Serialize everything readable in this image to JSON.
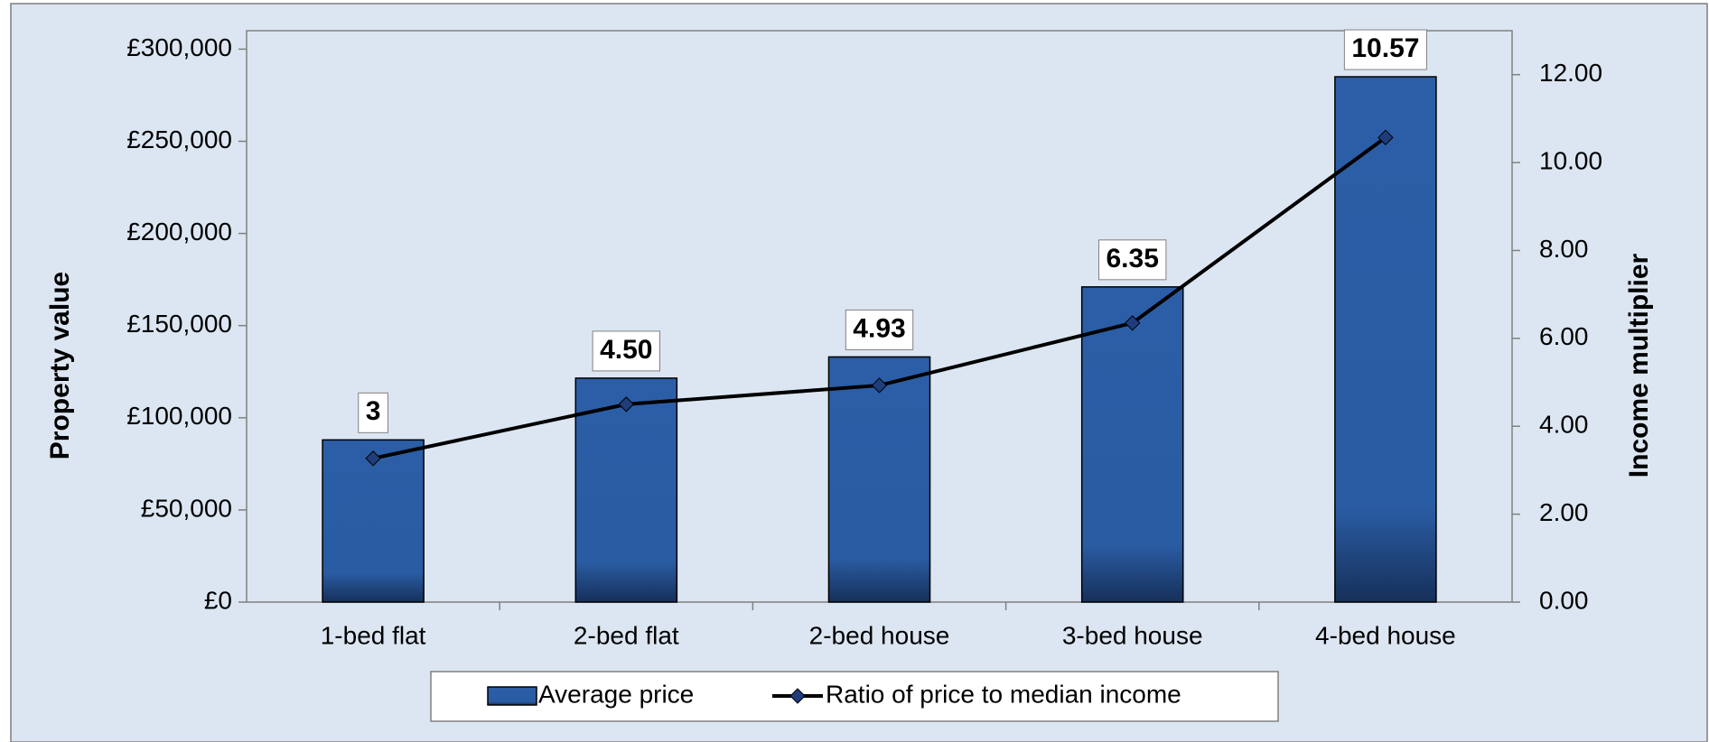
{
  "chart_data": {
    "type": "bar",
    "categories": [
      "1-bed flat",
      "2-bed flat",
      "2-bed house",
      "3-bed house",
      "4-bed house"
    ],
    "series": [
      {
        "name": "Average price",
        "type": "bar",
        "color": "#2a5aa0",
        "values": [
          88000,
          121500,
          133000,
          171000,
          285000
        ]
      },
      {
        "name": "Ratio of price to median income",
        "type": "line",
        "axis": "y2",
        "color": "#000000",
        "marker_color": "#1f3d7a",
        "values": [
          3.27,
          4.5,
          4.93,
          6.35,
          10.57
        ],
        "value_labels": [
          "3",
          "4.50",
          "4.93",
          "6.35",
          "10.57"
        ]
      }
    ],
    "ylabel": "Property value",
    "y2label": "Income multiplier",
    "ylim": [
      0,
      310000
    ],
    "yticks": [
      {
        "value": 0,
        "label": "£0"
      },
      {
        "value": 50000,
        "label": "£50,000"
      },
      {
        "value": 100000,
        "label": "£100,000"
      },
      {
        "value": 150000,
        "label": "£150,000"
      },
      {
        "value": 200000,
        "label": "£200,000"
      },
      {
        "value": 250000,
        "label": "£250,000"
      },
      {
        "value": 300000,
        "label": "£300,000"
      }
    ],
    "y2lim": [
      0,
      13
    ],
    "y2ticks": [
      {
        "value": 0,
        "label": "0.00"
      },
      {
        "value": 2,
        "label": "2.00"
      },
      {
        "value": 4,
        "label": "4.00"
      },
      {
        "value": 6,
        "label": "6.00"
      },
      {
        "value": 8,
        "label": "8.00"
      },
      {
        "value": 10,
        "label": "10.00"
      },
      {
        "value": 12,
        "label": "12.00"
      }
    ],
    "grid": false,
    "legend": "bottom"
  }
}
